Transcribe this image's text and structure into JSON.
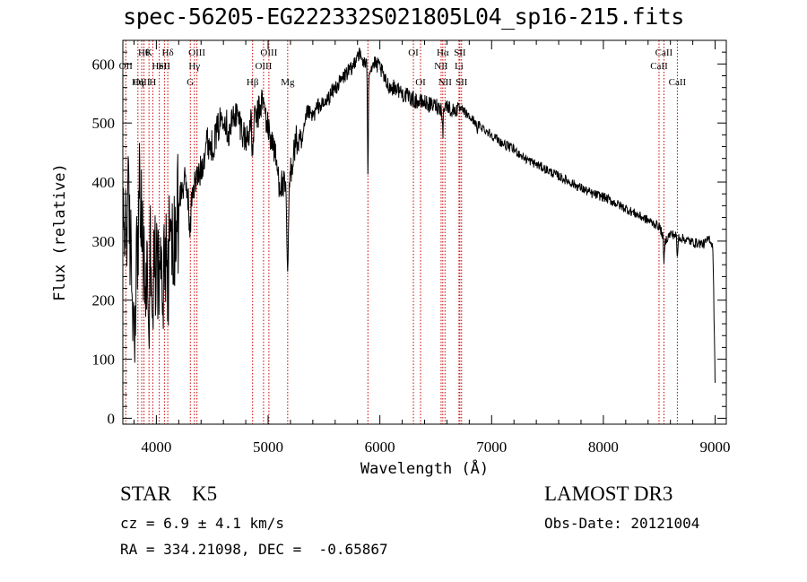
{
  "title": "spec-56205-EG222332S021805L04_sp16-215.fits",
  "info": {
    "object_class": "STAR",
    "subclass": "K5",
    "cz": "cz = 6.9 ± 4.1 km/s",
    "survey": "LAMOST DR3",
    "obs_date": "Obs-Date: 20121004",
    "radec": "RA = 334.21098, DEC =  -0.65867"
  },
  "colors": {
    "line_marker": "#cc0000",
    "spectrum": "#000000"
  },
  "chart_data": {
    "type": "line",
    "title": "spec-56205-EG222332S021805L04_sp16-215.fits",
    "xlabel": "Wavelength (Å)",
    "ylabel": "Flux (relative)",
    "xlim": [
      3700,
      9100
    ],
    "ylim": [
      -10,
      640
    ],
    "xticks": [
      4000,
      5000,
      6000,
      7000,
      8000,
      9000
    ],
    "yticks": [
      0,
      100,
      200,
      300,
      400,
      500,
      600
    ],
    "series": [
      {
        "name": "flux",
        "x": [
          3700,
          3750,
          3800,
          3850,
          3900,
          3950,
          4000,
          4050,
          4100,
          4150,
          4200,
          4250,
          4300,
          4350,
          4400,
          4450,
          4500,
          4550,
          4600,
          4650,
          4700,
          4750,
          4800,
          4850,
          4900,
          4950,
          5000,
          5050,
          5100,
          5150,
          5200,
          5250,
          5300,
          5350,
          5400,
          5450,
          5500,
          5550,
          5600,
          5650,
          5700,
          5750,
          5800,
          5850,
          5900,
          5950,
          6000,
          6050,
          6100,
          6150,
          6200,
          6250,
          6300,
          6350,
          6400,
          6450,
          6500,
          6550,
          6600,
          6650,
          6700,
          6750,
          6800,
          6900,
          7000,
          7100,
          7200,
          7300,
          7400,
          7500,
          7600,
          7700,
          7800,
          7900,
          8000,
          8100,
          8200,
          8300,
          8400,
          8500,
          8550,
          8600,
          8650,
          8700,
          8800,
          8900,
          8950,
          8980,
          9000
        ],
        "y": [
          300,
          360,
          160,
          380,
          220,
          300,
          250,
          230,
          320,
          280,
          370,
          400,
          380,
          400,
          420,
          470,
          460,
          490,
          520,
          480,
          520,
          500,
          470,
          500,
          510,
          540,
          490,
          460,
          400,
          390,
          420,
          470,
          460,
          520,
          510,
          530,
          530,
          545,
          560,
          570,
          585,
          590,
          620,
          605,
          590,
          600,
          595,
          570,
          560,
          560,
          550,
          545,
          540,
          535,
          535,
          530,
          530,
          525,
          530,
          520,
          525,
          520,
          510,
          495,
          480,
          465,
          455,
          440,
          430,
          420,
          410,
          400,
          390,
          380,
          375,
          365,
          355,
          345,
          335,
          325,
          300,
          312,
          310,
          305,
          298,
          295,
          305,
          290,
          60
        ]
      }
    ],
    "line_markers": [
      {
        "wl": 3726,
        "label": "OII",
        "row": 2
      },
      {
        "wl": 3835,
        "label": "Hη",
        "row": 3
      },
      {
        "wl": 3869,
        "label": "OIII",
        "row": 3
      },
      {
        "wl": 3889,
        "label": "Hθ",
        "row": 1
      },
      {
        "wl": 3934,
        "label": "K",
        "row": 1
      },
      {
        "wl": 3968,
        "label": "H",
        "row": 3
      },
      {
        "wl": 4026,
        "label": "HeI",
        "row": 2
      },
      {
        "wl": 4072,
        "label": "SII",
        "row": 2
      },
      {
        "wl": 4102,
        "label": "Hδ",
        "row": 1
      },
      {
        "wl": 4304,
        "label": "G",
        "row": 3
      },
      {
        "wl": 4340,
        "label": "Hγ",
        "row": 2
      },
      {
        "wl": 4363,
        "label": "OIII",
        "row": 1
      },
      {
        "wl": 4861,
        "label": "Hβ",
        "row": 3
      },
      {
        "wl": 4959,
        "label": "OIII",
        "row": 2
      },
      {
        "wl": 5007,
        "label": "OIII",
        "row": 1
      },
      {
        "wl": 5175,
        "label": "Mg",
        "row": 3
      },
      {
        "wl": 5893,
        "label": "",
        "row": 0
      },
      {
        "wl": 6300,
        "label": "OI",
        "row": 1
      },
      {
        "wl": 6364,
        "label": "OI",
        "row": 3
      },
      {
        "wl": 6548,
        "label": "NII",
        "row": 2
      },
      {
        "wl": 6563,
        "label": "Hα",
        "row": 1
      },
      {
        "wl": 6583,
        "label": "NII",
        "row": 3
      },
      {
        "wl": 6708,
        "label": "Li",
        "row": 2
      },
      {
        "wl": 6716,
        "label": "SII",
        "row": 1
      },
      {
        "wl": 6731,
        "label": "SII",
        "row": 3
      },
      {
        "wl": 8498,
        "label": "CaII",
        "row": 2
      },
      {
        "wl": 8542,
        "label": "CaII",
        "row": 1
      },
      {
        "wl": 8662,
        "label": "CaII",
        "row": 3
      }
    ]
  }
}
